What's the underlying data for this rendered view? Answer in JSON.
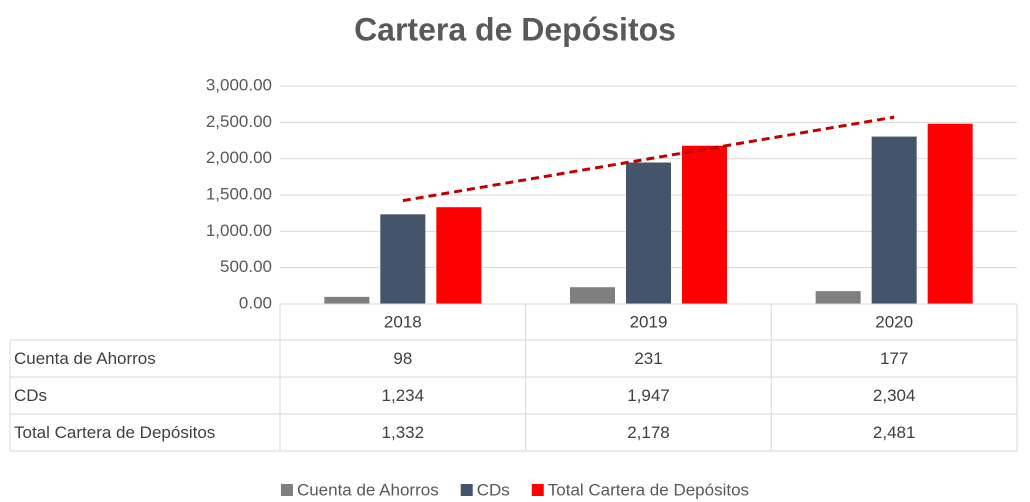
{
  "chart_data": {
    "type": "bar",
    "title": "Cartera de Depósitos",
    "categories": [
      "2018",
      "2019",
      "2020"
    ],
    "series": [
      {
        "name": "Cuenta de Ahorros",
        "color": "#7f7f7f",
        "values": [
          98,
          231,
          177
        ],
        "value_labels": [
          "98",
          "231",
          "177"
        ]
      },
      {
        "name": "CDs",
        "color": "#44546a",
        "values": [
          1234,
          1947,
          2304
        ],
        "value_labels": [
          "1,234",
          "1,947",
          "2,304"
        ]
      },
      {
        "name": "Total Cartera de Depósitos",
        "color": "#ff0000",
        "values": [
          1332,
          2178,
          2481
        ],
        "value_labels": [
          "1,332",
          "2,178",
          "2,481"
        ]
      }
    ],
    "ylim": [
      0,
      3000
    ],
    "yticks": [
      {
        "value": 0,
        "label": "0.00"
      },
      {
        "value": 500,
        "label": "500.00"
      },
      {
        "value": 1000,
        "label": "1,000.00"
      },
      {
        "value": 1500,
        "label": "1,500.00"
      },
      {
        "value": 2000,
        "label": "2,000.00"
      },
      {
        "value": 2500,
        "label": "2,500.00"
      },
      {
        "value": 3000,
        "label": "3,000.00"
      }
    ],
    "grid": true,
    "data_table": true,
    "legend": "bottom",
    "trendline": {
      "series": 2,
      "type": "linear",
      "color": "#c00000"
    }
  }
}
